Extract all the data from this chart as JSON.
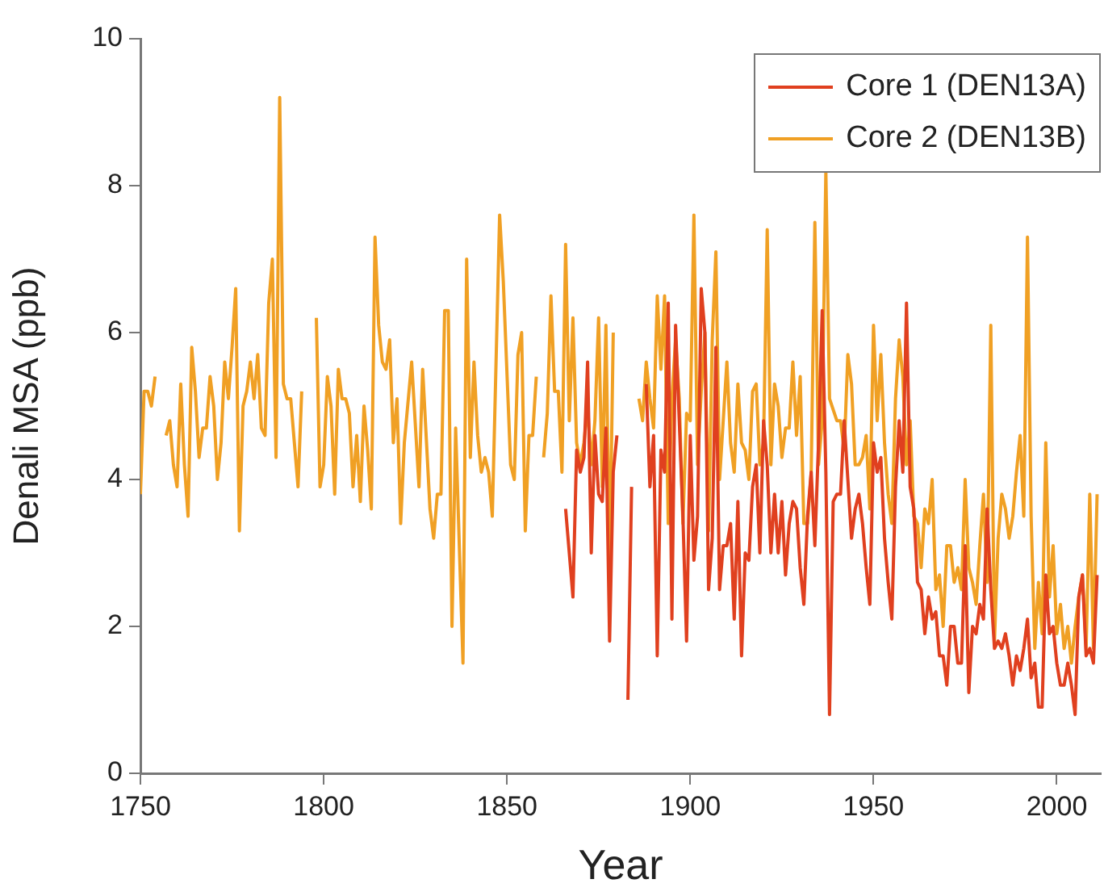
{
  "chart_data": {
    "type": "line",
    "xlabel": "Year",
    "ylabel": "Denali MSA (ppb)",
    "xlim": [
      1750,
      2012
    ],
    "xticks": [
      1750,
      1800,
      1850,
      1900,
      1950,
      2000
    ],
    "ylim": [
      0,
      10
    ],
    "yticks": [
      0,
      2,
      4,
      6,
      8,
      10
    ],
    "grid": false,
    "legend": "top right",
    "marker": "none",
    "line_style": "solid",
    "series": [
      {
        "name": "Core 1 (DEN13A)",
        "color": "#e0401f",
        "x": [
          1866,
          1868,
          1869,
          1870,
          1871,
          1872,
          1873,
          1874,
          1875,
          1876,
          1877,
          1878,
          1879,
          1880,
          1882,
          1883,
          1884,
          1886,
          1888,
          1889,
          1890,
          1891,
          1892,
          1893,
          1894,
          1895,
          1896,
          1897,
          1898,
          1899,
          1900,
          1901,
          1902,
          1903,
          1904,
          1905,
          1906,
          1907,
          1908,
          1909,
          1910,
          1911,
          1912,
          1913,
          1914,
          1915,
          1916,
          1917,
          1918,
          1919,
          1920,
          1921,
          1922,
          1923,
          1924,
          1925,
          1926,
          1927,
          1928,
          1929,
          1930,
          1931,
          1932,
          1933,
          1934,
          1935,
          1936,
          1937,
          1938,
          1939,
          1940,
          1941,
          1942,
          1943,
          1944,
          1945,
          1946,
          1947,
          1948,
          1949,
          1950,
          1951,
          1952,
          1953,
          1954,
          1955,
          1956,
          1957,
          1958,
          1959,
          1960,
          1961,
          1962,
          1963,
          1964,
          1965,
          1966,
          1967,
          1968,
          1969,
          1970,
          1971,
          1972,
          1973,
          1974,
          1975,
          1976,
          1977,
          1978,
          1979,
          1980,
          1981,
          1982,
          1983,
          1984,
          1985,
          1986,
          1987,
          1988,
          1989,
          1990,
          1991,
          1992,
          1993,
          1994,
          1995,
          1996,
          1997,
          1998,
          1999,
          2000,
          2001,
          2002,
          2003,
          2004,
          2005,
          2006,
          2007,
          2008,
          2009,
          2010,
          2011
        ],
        "values": [
          3.6,
          2.4,
          4.4,
          4.1,
          4.3,
          5.6,
          3.0,
          4.6,
          3.8,
          3.7,
          4.7,
          1.8,
          4.1,
          4.6,
          null,
          1.0,
          3.9,
          null,
          5.3,
          3.9,
          4.6,
          1.6,
          4.4,
          4.1,
          6.4,
          2.1,
          6.1,
          4.8,
          3.5,
          1.8,
          4.6,
          2.9,
          3.5,
          6.6,
          6.0,
          2.5,
          3.2,
          5.8,
          2.5,
          3.1,
          3.1,
          3.4,
          2.1,
          3.7,
          1.6,
          3.0,
          2.9,
          3.9,
          4.2,
          3.0,
          4.8,
          4.2,
          3.0,
          3.8,
          3.0,
          3.7,
          2.7,
          3.4,
          3.7,
          3.6,
          2.8,
          2.3,
          3.5,
          4.1,
          3.1,
          4.5,
          6.3,
          4.1,
          0.8,
          3.7,
          3.8,
          3.8,
          4.8,
          4.0,
          3.2,
          3.6,
          3.8,
          3.4,
          2.8,
          2.3,
          4.5,
          4.1,
          4.3,
          3.2,
          2.6,
          2.1,
          3.9,
          4.8,
          4.1,
          6.4,
          3.9,
          3.6,
          2.6,
          2.5,
          1.9,
          2.4,
          2.1,
          2.2,
          1.6,
          1.6,
          1.2,
          2.0,
          2.0,
          1.5,
          1.5,
          3.1,
          1.1,
          2.0,
          1.9,
          2.3,
          2.1,
          3.6,
          2.5,
          1.7,
          1.8,
          1.7,
          1.9,
          1.6,
          1.2,
          1.6,
          1.4,
          1.7,
          2.1,
          1.3,
          1.5,
          0.9,
          0.9,
          2.7,
          1.9,
          2.0,
          1.5,
          1.2,
          1.2,
          1.5,
          1.2,
          0.8,
          2.4,
          2.7,
          1.6,
          1.7,
          1.5,
          2.7
        ]
      },
      {
        "name": "Core 2 (DEN13B)",
        "color": "#f0a024",
        "x": [
          1750,
          1751,
          1752,
          1753,
          1754,
          1756,
          1757,
          1758,
          1759,
          1760,
          1761,
          1762,
          1763,
          1764,
          1765,
          1766,
          1767,
          1768,
          1769,
          1770,
          1771,
          1772,
          1773,
          1774,
          1775,
          1776,
          1777,
          1778,
          1779,
          1780,
          1781,
          1782,
          1783,
          1784,
          1785,
          1786,
          1787,
          1788,
          1789,
          1790,
          1791,
          1792,
          1793,
          1794,
          1796,
          1798,
          1799,
          1800,
          1801,
          1802,
          1803,
          1804,
          1805,
          1806,
          1807,
          1808,
          1809,
          1810,
          1811,
          1812,
          1813,
          1814,
          1815,
          1816,
          1817,
          1818,
          1819,
          1820,
          1821,
          1822,
          1824,
          1826,
          1827,
          1829,
          1830,
          1831,
          1832,
          1833,
          1834,
          1835,
          1836,
          1838,
          1839,
          1840,
          1841,
          1842,
          1843,
          1844,
          1845,
          1846,
          1848,
          1849,
          1851,
          1852,
          1853,
          1854,
          1855,
          1856,
          1857,
          1858,
          1859,
          1860,
          1861,
          1862,
          1863,
          1864,
          1865,
          1866,
          1867,
          1868,
          1869,
          1870,
          1871,
          1872,
          1873,
          1874,
          1875,
          1876,
          1877,
          1878,
          1879,
          1882,
          1886,
          1887,
          1888,
          1889,
          1890,
          1891,
          1892,
          1893,
          1894,
          1895,
          1896,
          1897,
          1898,
          1899,
          1900,
          1901,
          1902,
          1903,
          1904,
          1905,
          1906,
          1907,
          1908,
          1909,
          1910,
          1911,
          1912,
          1913,
          1914,
          1915,
          1916,
          1917,
          1918,
          1919,
          1920,
          1921,
          1922,
          1923,
          1924,
          1925,
          1926,
          1927,
          1928,
          1929,
          1930,
          1931,
          1932,
          1933,
          1934,
          1935,
          1936,
          1937,
          1938,
          1940,
          1941,
          1942,
          1943,
          1944,
          1945,
          1946,
          1947,
          1948,
          1949,
          1950,
          1951,
          1952,
          1953,
          1954,
          1955,
          1956,
          1957,
          1958,
          1959,
          1960,
          1961,
          1962,
          1963,
          1964,
          1965,
          1966,
          1967,
          1968,
          1969,
          1970,
          1971,
          1972,
          1973,
          1974,
          1975,
          1976,
          1977,
          1978,
          1979,
          1980,
          1981,
          1982,
          1983,
          1984,
          1985,
          1986,
          1987,
          1988,
          1989,
          1990,
          1991,
          1992,
          1993,
          1994,
          1995,
          1996,
          1997,
          1998,
          1999,
          2000,
          2001,
          2002,
          2003,
          2004,
          2005,
          2006,
          2007,
          2008,
          2009,
          2010,
          2011
        ],
        "values": [
          3.8,
          5.2,
          5.2,
          5.0,
          5.4,
          null,
          4.6,
          4.8,
          4.2,
          3.9,
          5.3,
          4.2,
          3.5,
          5.8,
          5.2,
          4.3,
          4.7,
          4.7,
          5.4,
          5.0,
          4.0,
          4.5,
          5.6,
          5.1,
          5.8,
          6.6,
          3.3,
          5.0,
          5.2,
          5.6,
          5.1,
          5.7,
          4.7,
          4.6,
          6.4,
          7.0,
          4.3,
          9.2,
          5.3,
          5.1,
          5.1,
          4.5,
          3.9,
          5.2,
          null,
          6.2,
          3.9,
          4.2,
          5.4,
          5.0,
          3.8,
          5.5,
          5.1,
          5.1,
          4.9,
          3.9,
          4.6,
          3.7,
          5.0,
          4.4,
          3.6,
          7.3,
          6.1,
          5.6,
          5.5,
          5.9,
          4.5,
          5.1,
          3.4,
          4.5,
          5.6,
          3.9,
          5.5,
          3.6,
          3.2,
          3.8,
          3.8,
          6.3,
          6.3,
          2.0,
          4.7,
          1.5,
          7.0,
          4.3,
          5.6,
          4.6,
          4.1,
          4.3,
          4.1,
          3.5,
          7.6,
          6.7,
          4.2,
          4.0,
          5.7,
          6.0,
          3.3,
          4.6,
          4.6,
          5.4,
          null,
          4.3,
          4.9,
          6.5,
          5.2,
          5.2,
          4.1,
          7.2,
          4.8,
          6.2,
          4.5,
          4.2,
          4.5,
          5.0,
          4.2,
          4.8,
          6.2,
          3.9,
          6.1,
          2.8,
          6.0,
          null,
          5.1,
          4.8,
          5.6,
          5.1,
          4.7,
          6.5,
          5.5,
          6.5,
          3.4,
          5.1,
          5.9,
          5.1,
          3.4,
          4.9,
          4.8,
          7.6,
          4.2,
          5.2,
          6.0,
          3.3,
          5.9,
          7.1,
          4.0,
          4.8,
          5.6,
          4.5,
          4.1,
          5.3,
          4.5,
          4.4,
          4.0,
          5.2,
          5.3,
          4.2,
          4.5,
          7.4,
          4.2,
          5.3,
          5.0,
          4.3,
          4.7,
          4.7,
          5.6,
          4.6,
          5.4,
          3.4,
          3.4,
          4.1,
          7.5,
          4.2,
          4.8,
          8.2,
          5.1,
          4.8,
          4.8,
          4.4,
          5.7,
          5.3,
          4.2,
          4.2,
          4.3,
          4.6,
          3.6,
          6.1,
          4.8,
          5.7,
          4.5,
          3.8,
          3.4,
          5.1,
          5.9,
          5.4,
          4.2,
          4.8,
          3.5,
          3.4,
          2.8,
          3.6,
          3.4,
          4.0,
          2.5,
          2.7,
          2.0,
          3.1,
          3.1,
          2.6,
          2.8,
          2.5,
          4.0,
          2.8,
          2.6,
          2.3,
          3.1,
          3.8,
          2.6,
          6.1,
          1.8,
          3.2,
          3.8,
          3.6,
          3.2,
          3.5,
          4.1,
          4.6,
          3.5,
          7.3,
          3.5,
          1.7,
          2.6,
          1.9,
          4.5,
          2.4,
          3.1,
          1.9,
          2.3,
          1.7,
          2.0,
          1.5,
          2.0,
          2.4,
          2.7,
          1.7,
          3.8,
          1.7,
          3.8
        ]
      }
    ]
  }
}
